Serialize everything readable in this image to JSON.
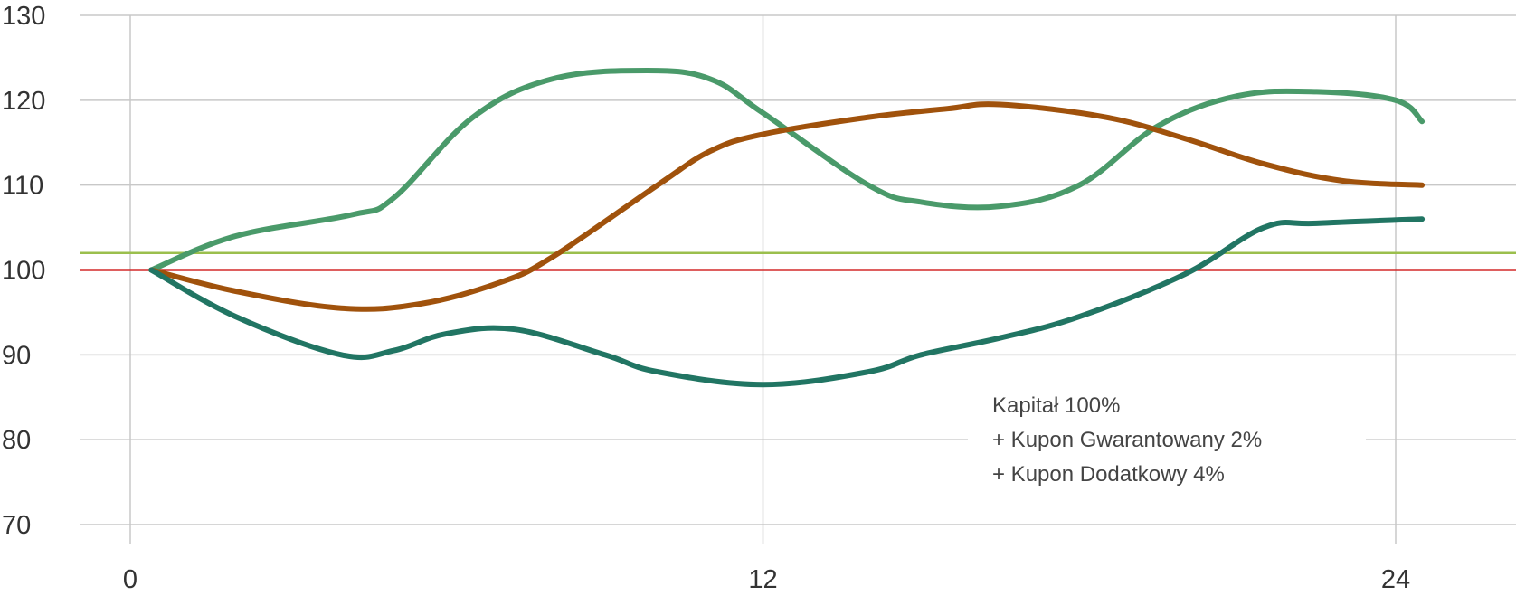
{
  "chart_data": {
    "type": "line",
    "title": "",
    "xlabel": "",
    "ylabel": "",
    "xlim": [
      0,
      26
    ],
    "ylim": [
      70,
      130
    ],
    "x_ticks": [
      0,
      12,
      24
    ],
    "y_ticks": [
      70,
      80,
      90,
      100,
      110,
      120,
      130
    ],
    "grid": true,
    "legend": "none",
    "reference_lines": [
      {
        "value": 100,
        "color": "#d42a2a"
      },
      {
        "value": 102,
        "color": "#9bbf4d"
      }
    ],
    "series": [
      {
        "color": "#4a9a6a",
        "x": [
          0.4,
          2.0,
          4.2,
          5.0,
          6.5,
          8.0,
          9.8,
          11.0,
          12.0,
          14.0,
          15.0,
          16.5,
          18.0,
          19.5,
          21.0,
          22.5,
          24.0,
          24.5
        ],
        "y": [
          100,
          104,
          106.5,
          108.5,
          118,
          122.5,
          123.5,
          122.5,
          118.5,
          110,
          108,
          107.5,
          110,
          117,
          120.5,
          121,
          120,
          117.5
        ]
      },
      {
        "color": "#a0520c",
        "x": [
          0.4,
          2.0,
          4.0,
          5.5,
          7.0,
          8.0,
          10.0,
          11.0,
          12.0,
          14.0,
          15.5,
          16.5,
          18.5,
          20.0,
          21.5,
          23.0,
          24.5
        ],
        "y": [
          100,
          97.5,
          95.5,
          96,
          98.5,
          101.5,
          110,
          114,
          116,
          118,
          119,
          119.5,
          118,
          115.5,
          112.5,
          110.5,
          110
        ]
      },
      {
        "color": "#217563",
        "x": [
          0.4,
          2.0,
          4.0,
          5.0,
          6.0,
          7.3,
          9.0,
          10.0,
          12.0,
          14.0,
          15.0,
          16.5,
          18.0,
          20.0,
          21.5,
          22.5,
          24.5
        ],
        "y": [
          100,
          94.5,
          90,
          90.5,
          92.5,
          93,
          90,
          88,
          86.5,
          88,
          90,
          92,
          94.5,
          99.5,
          105,
          105.5,
          106
        ]
      }
    ],
    "annotation": {
      "lines": [
        "Kapitał 100%",
        "+ Kupon Gwarantowany 2%",
        "+ Kupon Dodatkowy 4%"
      ]
    }
  }
}
